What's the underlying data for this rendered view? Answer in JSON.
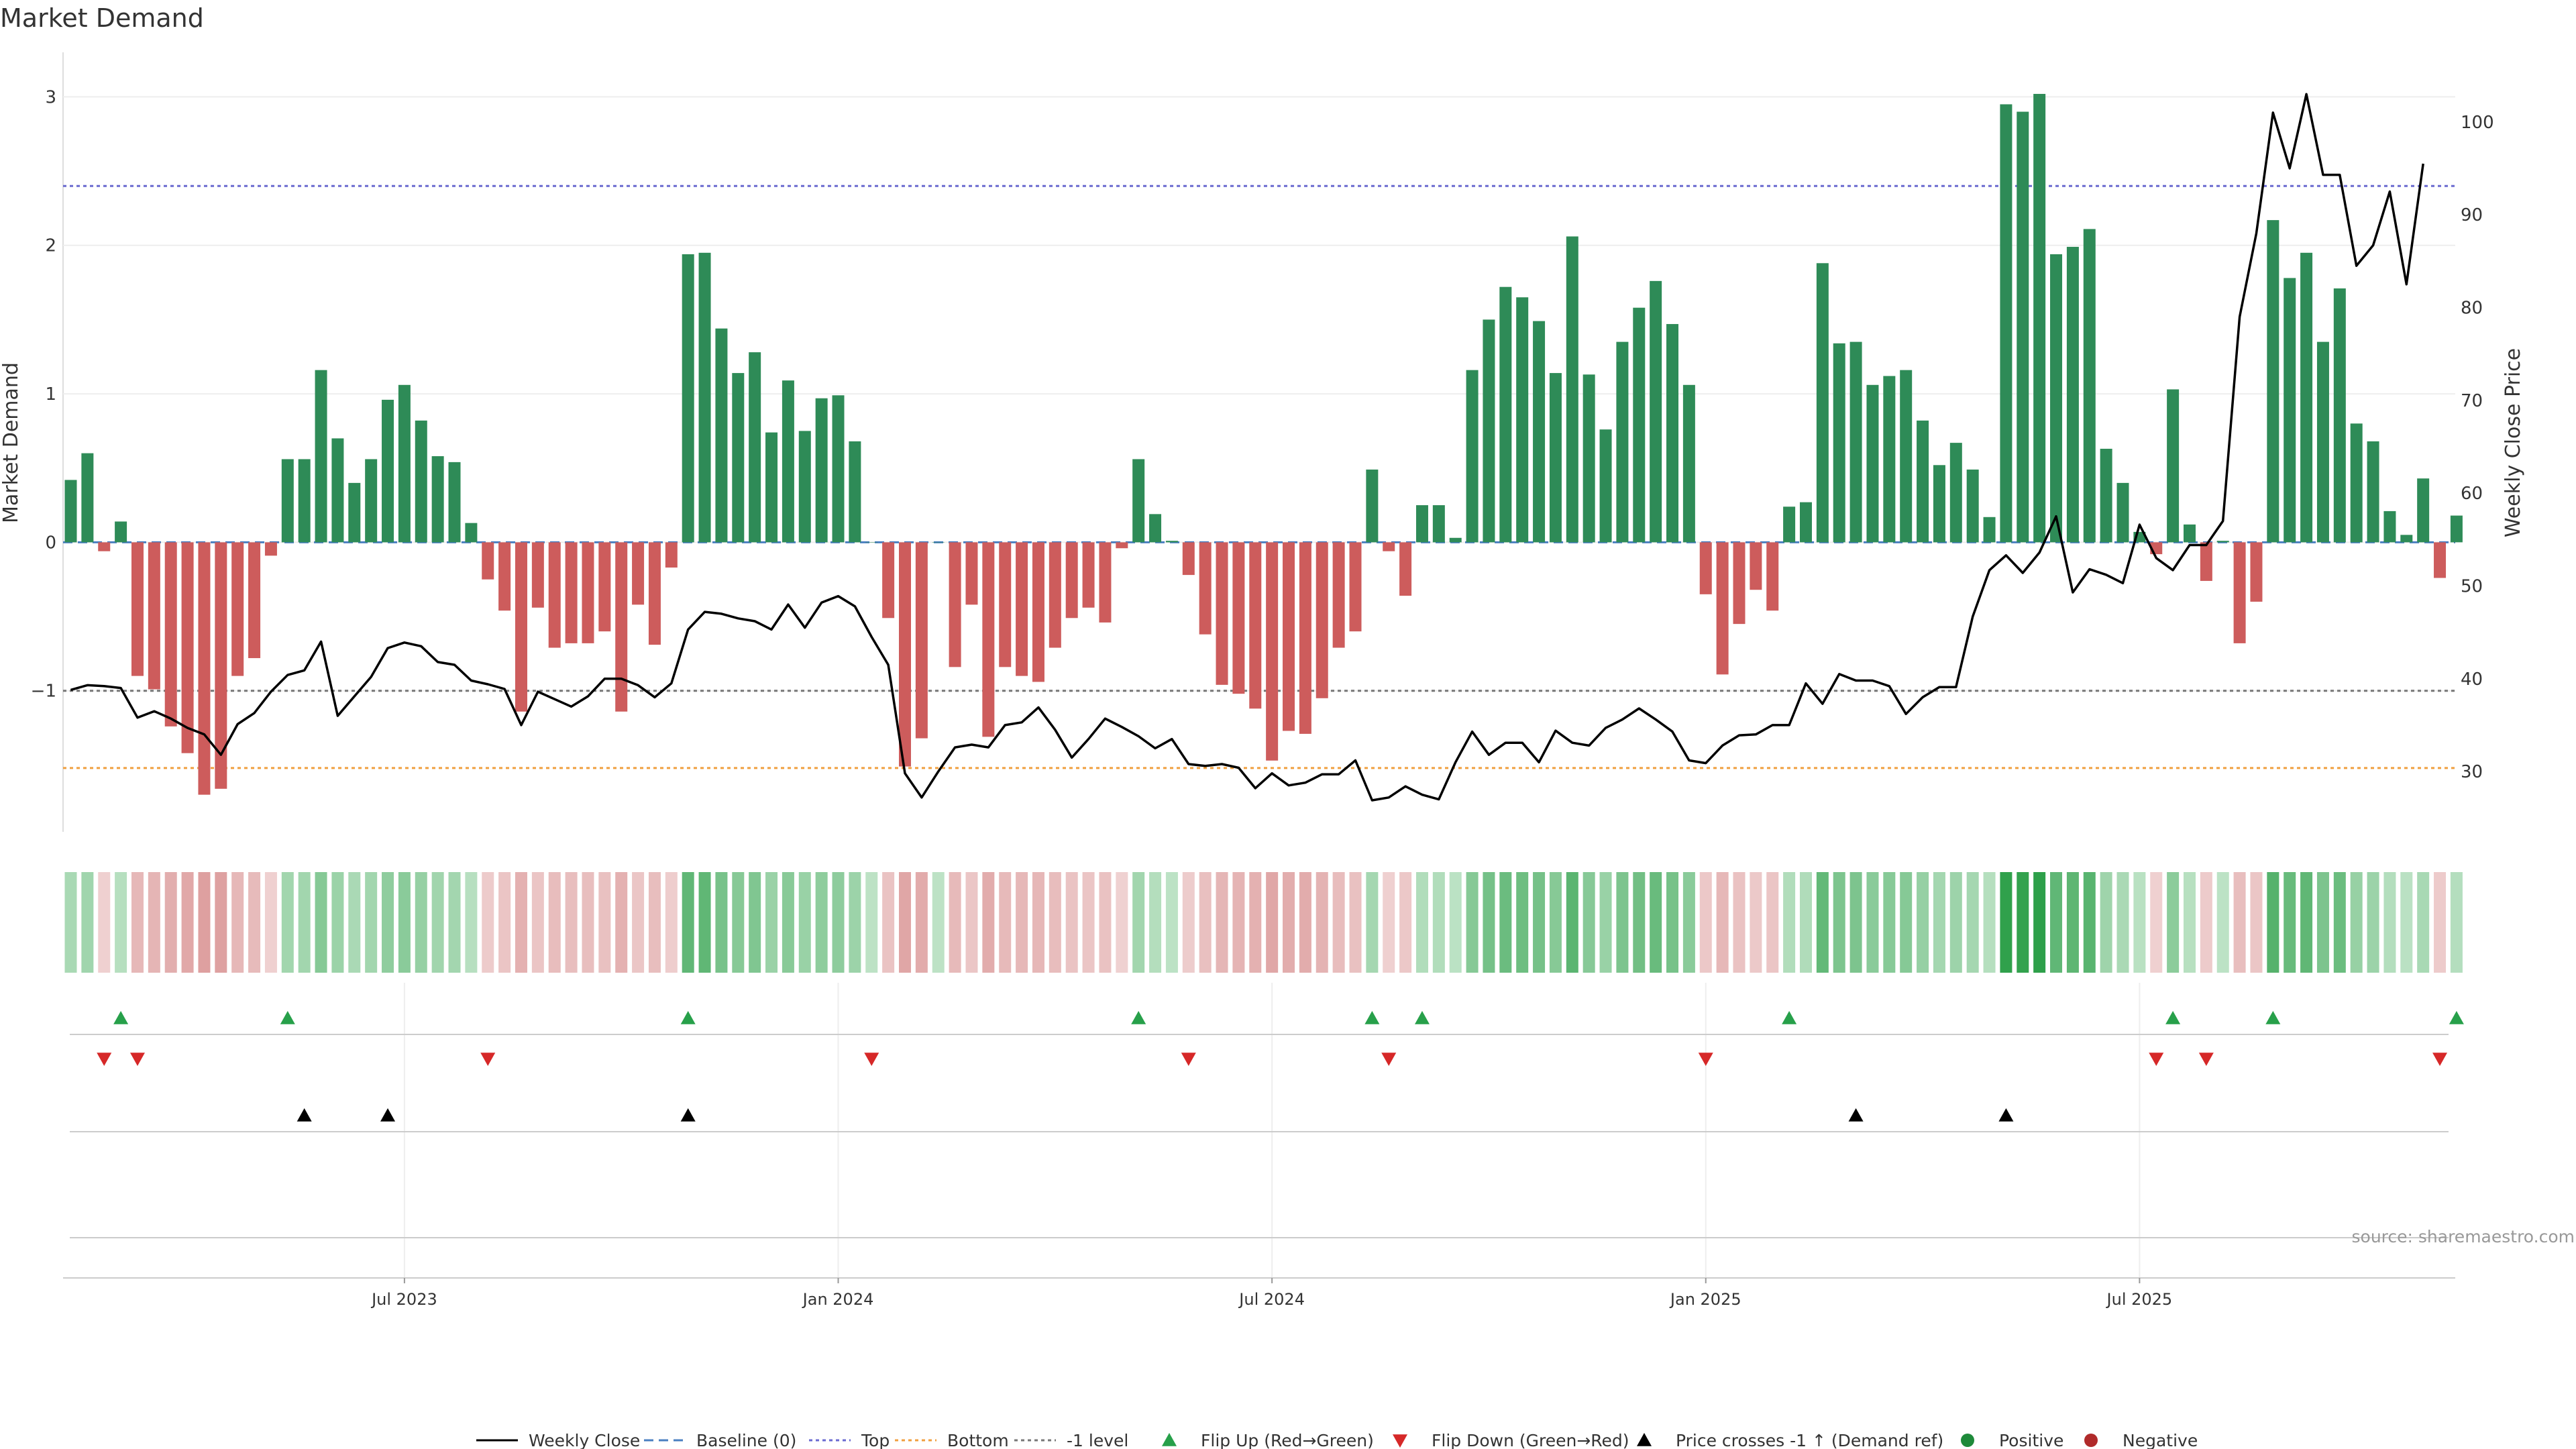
{
  "title": "Market Demand",
  "source": "source: sharemaestro.com",
  "chart_data": {
    "type": "bar",
    "title": "Market Demand",
    "ylabel": "Market Demand",
    "y2label": "Weekly Close Price",
    "ylim": [
      -1.95,
      3.3
    ],
    "y2lim": [
      23.5,
      107.5
    ],
    "y_ticks": [
      3,
      2,
      1,
      0,
      -1
    ],
    "y_tick_labels": [
      "3",
      "2",
      "1",
      "0",
      "−1"
    ],
    "y2_ticks": [
      100,
      90,
      80,
      70,
      60,
      50,
      40,
      30
    ],
    "x_ticks": [
      {
        "index": 20,
        "label": "Jul 2023"
      },
      {
        "index": 46,
        "label": "Jan 2024"
      },
      {
        "index": 72,
        "label": "Jul 2024"
      },
      {
        "index": 98,
        "label": "Jan 2025"
      },
      {
        "index": 124,
        "label": "Jul 2025"
      }
    ],
    "reference_lines": [
      {
        "name": "Baseline (0)",
        "value": 0,
        "color": "#4a7fc1",
        "style": "dashed"
      },
      {
        "name": "Top",
        "value": 2.4,
        "color": "#6a6ad0",
        "style": "dotted"
      },
      {
        "name": "Bottom",
        "value": -1.52,
        "color": "#f0a040",
        "style": "dotted"
      },
      {
        "name": "-1 level",
        "value": -1,
        "color": "#777777",
        "style": "dotted"
      }
    ],
    "colors": {
      "positive": "#2e8b57",
      "negative": "#cd5c5c",
      "price": "#000000",
      "flip_up": "#27a04a",
      "flip_down": "#d62828",
      "cross": "#000000"
    },
    "demand": [
      0.42,
      0.6,
      -0.06,
      0.14,
      -0.9,
      -0.99,
      -1.24,
      -1.42,
      -1.7,
      -1.66,
      -0.9,
      -0.78,
      -0.09,
      0.56,
      0.56,
      1.16,
      0.7,
      0.4,
      0.56,
      0.96,
      1.06,
      0.82,
      0.58,
      0.54,
      0.13,
      -0.25,
      -0.46,
      -1.14,
      -0.44,
      -0.71,
      -0.68,
      -0.68,
      -0.6,
      -1.14,
      -0.42,
      -0.69,
      -0.17,
      1.94,
      1.95,
      1.44,
      1.14,
      1.28,
      0.74,
      1.09,
      0.75,
      0.97,
      0.99,
      0.68,
      0.0,
      -0.51,
      -1.51,
      -1.32,
      0.0,
      -0.84,
      -0.42,
      -1.31,
      -0.84,
      -0.9,
      -0.94,
      -0.71,
      -0.51,
      -0.44,
      -0.54,
      -0.04,
      0.56,
      0.19,
      0.01,
      -0.22,
      -0.62,
      -0.96,
      -1.02,
      -1.12,
      -1.47,
      -1.27,
      -1.29,
      -1.05,
      -0.71,
      -0.6,
      0.49,
      -0.06,
      -0.36,
      0.25,
      0.25,
      0.03,
      1.16,
      1.5,
      1.72,
      1.65,
      1.49,
      1.14,
      2.06,
      1.13,
      0.76,
      1.35,
      1.58,
      1.76,
      1.47,
      1.06,
      -0.35,
      -0.89,
      -0.55,
      -0.32,
      -0.46,
      0.24,
      0.27,
      1.88,
      1.34,
      1.35,
      1.06,
      1.12,
      1.16,
      0.82,
      0.52,
      0.67,
      0.49,
      0.17,
      2.95,
      2.9,
      3.02,
      1.94,
      1.99,
      2.11,
      0.63,
      0.4,
      0.07,
      -0.08,
      1.03,
      0.12,
      -0.26,
      0.01,
      -0.68,
      -0.4,
      2.17,
      1.78,
      1.95,
      1.35,
      1.71,
      0.8,
      0.68,
      0.21,
      0.05,
      0.43,
      -0.24,
      0.18
    ],
    "weekly_close": [
      38.8,
      39.3,
      39.2,
      39.0,
      35.8,
      36.5,
      35.7,
      34.7,
      34.0,
      31.8,
      35.1,
      36.3,
      38.6,
      40.4,
      40.9,
      44.0,
      36.0,
      38.1,
      40.2,
      43.3,
      43.9,
      43.5,
      41.8,
      41.5,
      39.8,
      39.4,
      38.9,
      35.0,
      38.6,
      37.8,
      37.0,
      38.1,
      40.0,
      40.0,
      39.3,
      38.0,
      39.5,
      45.3,
      47.2,
      47.0,
      46.5,
      46.2,
      45.3,
      48.0,
      45.5,
      48.2,
      48.9,
      47.8,
      44.5,
      41.5,
      29.8,
      27.2,
      30.0,
      32.6,
      32.9,
      32.6,
      35.0,
      35.3,
      36.9,
      34.5,
      31.5,
      33.5,
      35.7,
      34.8,
      33.8,
      32.5,
      33.5,
      30.8,
      30.6,
      30.8,
      30.4,
      28.2,
      29.8,
      28.5,
      28.8,
      29.7,
      29.7,
      31.2,
      26.9,
      27.2,
      28.4,
      27.5,
      27.0,
      31.0,
      34.3,
      31.8,
      33.1,
      33.1,
      31.0,
      34.4,
      33.1,
      32.8,
      34.7,
      35.6,
      36.8,
      35.6,
      34.3,
      31.2,
      30.9,
      32.8,
      33.9,
      34.0,
      35.0,
      35.0,
      39.5,
      37.3,
      40.5,
      39.8,
      39.8,
      39.2,
      36.2,
      38.0,
      39.1,
      39.1,
      46.7,
      51.7,
      53.3,
      51.4,
      53.6,
      57.5,
      49.3,
      51.8,
      51.2,
      50.3,
      56.6,
      53.0,
      51.7,
      54.4,
      54.4,
      57.0,
      79.0,
      88.0,
      101.0,
      95.0,
      103.0,
      94.3,
      94.3,
      84.5,
      86.7,
      92.5,
      82.5,
      95.5
    ],
    "flip_up": [
      3,
      13,
      37,
      64,
      78,
      81,
      103,
      126,
      132,
      143
    ],
    "flip_down": [
      2,
      4,
      25,
      48,
      67,
      79,
      98,
      125,
      128,
      142
    ],
    "price_crosses": [
      14,
      19,
      37,
      107,
      116
    ],
    "legend": [
      "Weekly Close",
      "Baseline (0)",
      "Top",
      "Bottom",
      "-1 level",
      "Flip Up (Red→Green)",
      "Flip Down (Green→Red)",
      "Price crosses -1 ↑ (Demand ref)",
      "Positive",
      "Negative"
    ],
    "legend_position": "bottom-center"
  }
}
